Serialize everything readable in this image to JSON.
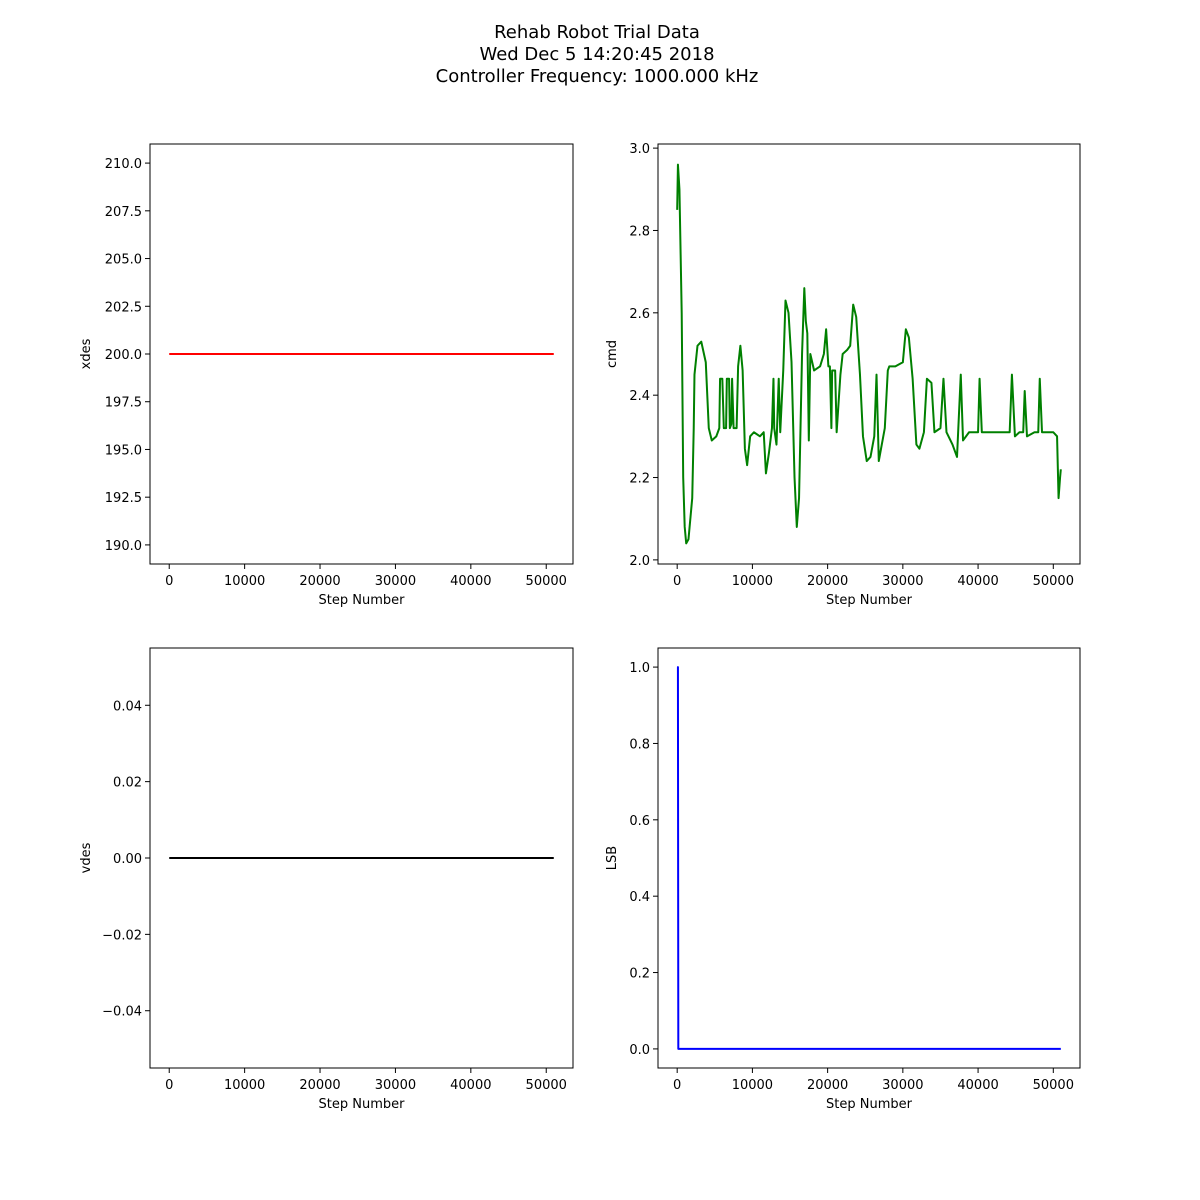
{
  "title": [
    "Rehab Robot Trial Data",
    "Wed Dec  5 14:20:45 2018",
    "Controller Frequency: 1000.000 kHz"
  ],
  "chart_data": [
    {
      "type": "line",
      "ylabel": "xdes",
      "xlabel": "Step Number",
      "color": "#ff0000",
      "x": [
        0,
        51000
      ],
      "values": [
        200,
        200
      ],
      "xlim": [
        -2550,
        53550
      ],
      "xticks": [
        0,
        10000,
        20000,
        30000,
        40000,
        50000
      ],
      "ylim": [
        189,
        211
      ],
      "yticks": [
        {
          "value": 190,
          "label": "190.0"
        },
        {
          "value": 192.5,
          "label": "192.5"
        },
        {
          "value": 195,
          "label": "195.0"
        },
        {
          "value": 197.5,
          "label": "197.5"
        },
        {
          "value": 200,
          "label": "200.0"
        },
        {
          "value": 202.5,
          "label": "202.5"
        },
        {
          "value": 205,
          "label": "205.0"
        },
        {
          "value": 207.5,
          "label": "207.5"
        },
        {
          "value": 210,
          "label": "210.0"
        }
      ]
    },
    {
      "type": "line",
      "ylabel": "cmd",
      "xlabel": "Step Number",
      "color": "#008000",
      "x": [
        0,
        100,
        300,
        600,
        800,
        1000,
        1200,
        1500,
        2000,
        2200,
        2300,
        2700,
        3200,
        3800,
        4200,
        4600,
        5200,
        5600,
        5700,
        6000,
        6200,
        6500,
        6600,
        6900,
        7000,
        7200,
        7300,
        7500,
        7900,
        8100,
        8400,
        8700,
        9000,
        9300,
        9700,
        10200,
        11000,
        11500,
        11800,
        12200,
        12600,
        12800,
        12900,
        13200,
        13500,
        13700,
        14100,
        14400,
        14800,
        15200,
        15600,
        15900,
        16200,
        16600,
        16900,
        17100,
        17300,
        17500,
        17700,
        18200,
        19000,
        19500,
        19800,
        20100,
        20300,
        20500,
        20600,
        21000,
        21200,
        21700,
        22000,
        22600,
        23000,
        23400,
        23800,
        24300,
        24700,
        25200,
        25700,
        26200,
        26500,
        26800,
        27100,
        27600,
        28000,
        28200,
        29000,
        30000,
        30400,
        30800,
        31300,
        31800,
        32200,
        32800,
        33200,
        33800,
        34200,
        35000,
        35400,
        35800,
        36600,
        37200,
        37700,
        38000,
        38800,
        40000,
        40200,
        40500,
        42000,
        43500,
        44200,
        44500,
        44900,
        45500,
        46000,
        46200,
        46500,
        47500,
        48000,
        48200,
        48500,
        49000,
        50000,
        50500,
        50700,
        50900,
        51000
      ],
      "values": [
        2.85,
        2.96,
        2.9,
        2.6,
        2.2,
        2.08,
        2.04,
        2.05,
        2.15,
        2.32,
        2.45,
        2.52,
        2.53,
        2.48,
        2.32,
        2.29,
        2.3,
        2.32,
        2.44,
        2.44,
        2.32,
        2.32,
        2.44,
        2.44,
        2.32,
        2.33,
        2.44,
        2.32,
        2.32,
        2.47,
        2.52,
        2.46,
        2.27,
        2.23,
        2.3,
        2.31,
        2.3,
        2.31,
        2.21,
        2.26,
        2.32,
        2.44,
        2.32,
        2.28,
        2.44,
        2.31,
        2.46,
        2.63,
        2.6,
        2.48,
        2.2,
        2.08,
        2.15,
        2.5,
        2.66,
        2.58,
        2.55,
        2.29,
        2.5,
        2.46,
        2.47,
        2.5,
        2.56,
        2.47,
        2.47,
        2.32,
        2.46,
        2.46,
        2.31,
        2.45,
        2.5,
        2.51,
        2.52,
        2.62,
        2.59,
        2.45,
        2.3,
        2.24,
        2.25,
        2.3,
        2.45,
        2.24,
        2.27,
        2.32,
        2.46,
        2.47,
        2.47,
        2.48,
        2.56,
        2.54,
        2.44,
        2.28,
        2.27,
        2.31,
        2.44,
        2.43,
        2.31,
        2.32,
        2.44,
        2.31,
        2.28,
        2.25,
        2.45,
        2.29,
        2.31,
        2.31,
        2.44,
        2.31,
        2.31,
        2.31,
        2.31,
        2.45,
        2.3,
        2.31,
        2.31,
        2.41,
        2.3,
        2.31,
        2.31,
        2.44,
        2.31,
        2.31,
        2.31,
        2.3,
        2.15,
        2.2,
        2.22
      ],
      "xlim": [
        -2550,
        53550
      ],
      "xticks": [
        0,
        10000,
        20000,
        30000,
        40000,
        50000
      ],
      "ylim": [
        1.99,
        3.01
      ],
      "yticks": [
        {
          "value": 2,
          "label": "2.0"
        },
        2.2,
        2.4,
        2.6,
        2.8,
        {
          "value": 3,
          "label": "3.0"
        }
      ]
    },
    {
      "type": "line",
      "ylabel": "vdes",
      "xlabel": "Step Number",
      "color": "#000000",
      "x": [
        0,
        51000
      ],
      "values": [
        0,
        0
      ],
      "xlim": [
        -2550,
        53550
      ],
      "xticks": [
        0,
        10000,
        20000,
        30000,
        40000,
        50000
      ],
      "ylim": [
        -0.055,
        0.055
      ],
      "yticks": [
        {
          "value": -0.04,
          "label": "−0.04"
        },
        {
          "value": -0.02,
          "label": "−0.02"
        },
        {
          "value": 0,
          "label": "0.00"
        },
        {
          "value": 0.02,
          "label": "0.02"
        },
        {
          "value": 0.04,
          "label": "0.04"
        }
      ]
    },
    {
      "type": "line",
      "ylabel": "LSB",
      "xlabel": "Step Number",
      "color": "#0000ff",
      "x": [
        0,
        100,
        150,
        51000
      ],
      "values": [
        1,
        1,
        0,
        0
      ],
      "xlim": [
        -2550,
        53550
      ],
      "xticks": [
        0,
        10000,
        20000,
        30000,
        40000,
        50000
      ],
      "ylim": [
        -0.05,
        1.05
      ],
      "yticks": [
        {
          "value": 0,
          "label": "0.0"
        },
        0.2,
        0.4,
        0.6,
        0.8,
        {
          "value": 1,
          "label": "1.0"
        }
      ]
    }
  ]
}
